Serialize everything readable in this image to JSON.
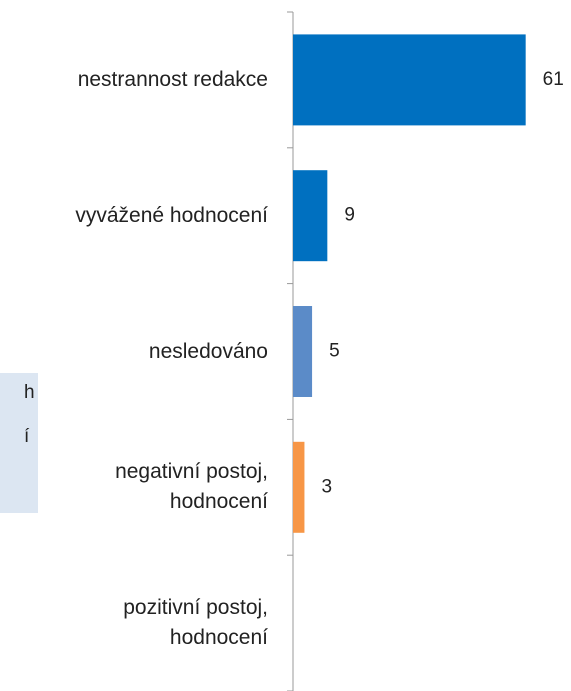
{
  "chart_data": {
    "type": "hbar",
    "categories": [
      "nestrannost redakce",
      "vyvážené hodnocení",
      "nesledováno",
      "negativní postoj, hodnocení",
      "pozitivní postoj, hodnocení"
    ],
    "values": [
      61,
      9,
      5,
      3,
      null
    ],
    "colors": [
      "#0070c0",
      "#0070c0",
      "#5b8bc8",
      "#f79646",
      "#f79646"
    ],
    "xlim": [
      0,
      70
    ]
  },
  "side_panel": {
    "lines": [
      "h",
      "í"
    ]
  }
}
